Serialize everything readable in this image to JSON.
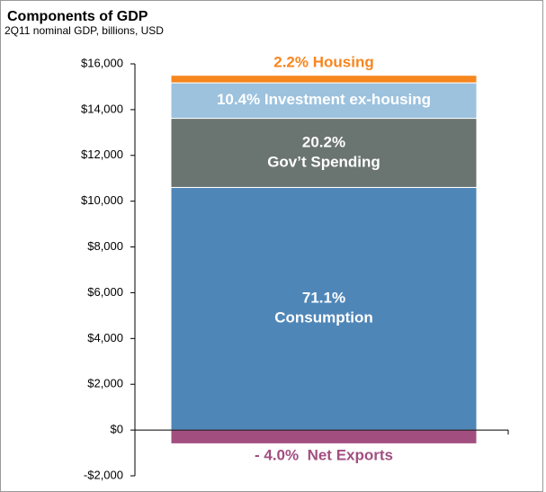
{
  "chart_data": {
    "type": "stacked_bar",
    "title": "Components of GDP",
    "subtitle": "2Q11 nominal GDP, billions, USD",
    "series": [
      {
        "name": "Consumption",
        "label": "71.1%",
        "color": "#4f86b8",
        "values": [
          10600
        ]
      },
      {
        "name": "Gov’t Spending",
        "label": "20.2%",
        "color": "#6a7470",
        "values": [
          3020
        ]
      },
      {
        "name": "Investment ex-housing",
        "label": "10.4%",
        "color": "#9cc2de",
        "values": [
          1550
        ]
      },
      {
        "name": "Housing",
        "label": "2.2%",
        "color": "#f7861f",
        "values": [
          330
        ]
      },
      {
        "name": "Net Exports",
        "label": "- 4.0%",
        "color": "#a24f80",
        "values": [
          -600
        ]
      }
    ],
    "ylim": [
      -2000,
      16000
    ],
    "yticks": [
      {
        "value": -2000,
        "label": "-$2,000"
      },
      {
        "value": 0,
        "label": "$0"
      },
      {
        "value": 2000,
        "label": "$2,000"
      },
      {
        "value": 4000,
        "label": "$4,000"
      },
      {
        "value": 6000,
        "label": "$6,000"
      },
      {
        "value": 8000,
        "label": "$8,000"
      },
      {
        "value": 10000,
        "label": "$10,000"
      },
      {
        "value": 12000,
        "label": "$12,000"
      },
      {
        "value": 14000,
        "label": "$14,000"
      },
      {
        "value": 16000,
        "label": "$16,000"
      }
    ]
  }
}
